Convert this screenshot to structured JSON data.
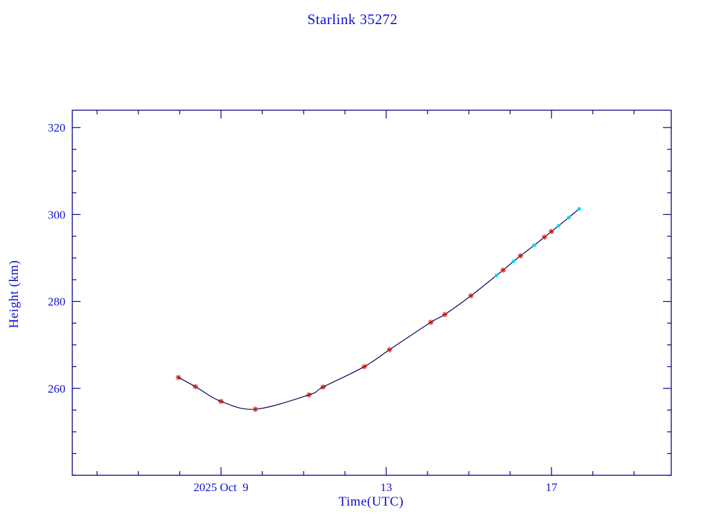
{
  "colors": {
    "frame": "#000080",
    "curve": "#000058",
    "text": "#0f0fd0",
    "marker_red": "#cc1414",
    "marker_cyan": "#00dde8",
    "background": "#ffffff"
  },
  "chart_data": {
    "type": "line",
    "title": "Starlink 35272",
    "xlabel": "Time(UTC)",
    "ylabel": "Height (km)",
    "x_axis_units": "day of 2025 Oct (UTC)",
    "xlim": [
      5.4,
      19.9
    ],
    "ylim": [
      240,
      324
    ],
    "grid": false,
    "legend": null,
    "x_major_ticks": [
      {
        "day": 9,
        "label": "2025 Oct  9"
      },
      {
        "day": 13,
        "label": "13"
      },
      {
        "day": 17,
        "label": "17"
      }
    ],
    "x_minor_tick_step_days": 1,
    "y_major_ticks": [
      260,
      280,
      300,
      320
    ],
    "y_minor_tick_step": 5,
    "series": [
      {
        "name": "red-points",
        "marker": "asterisk",
        "color_key": "marker_red",
        "points": [
          {
            "day": 7.97,
            "height": 262.5
          },
          {
            "day": 8.38,
            "height": 260.4
          },
          {
            "day": 9.0,
            "height": 257.0
          },
          {
            "day": 9.83,
            "height": 255.2
          },
          {
            "day": 11.13,
            "height": 258.5
          },
          {
            "day": 11.47,
            "height": 260.3
          },
          {
            "day": 12.47,
            "height": 265.0
          },
          {
            "day": 13.08,
            "height": 268.9
          },
          {
            "day": 14.08,
            "height": 275.2
          },
          {
            "day": 14.42,
            "height": 277.0
          },
          {
            "day": 15.05,
            "height": 281.3
          },
          {
            "day": 15.83,
            "height": 287.2
          },
          {
            "day": 16.25,
            "height": 290.5
          },
          {
            "day": 16.83,
            "height": 294.8
          },
          {
            "day": 17.0,
            "height": 296.1
          }
        ]
      },
      {
        "name": "cyan-points",
        "marker": "dot",
        "color_key": "marker_cyan",
        "points": [
          {
            "day": 15.67,
            "height": 286.0
          },
          {
            "day": 16.08,
            "height": 289.2
          },
          {
            "day": 16.58,
            "height": 292.9
          },
          {
            "day": 17.17,
            "height": 297.4
          },
          {
            "day": 17.42,
            "height": 299.3
          },
          {
            "day": 17.67,
            "height": 301.3
          }
        ]
      }
    ]
  }
}
